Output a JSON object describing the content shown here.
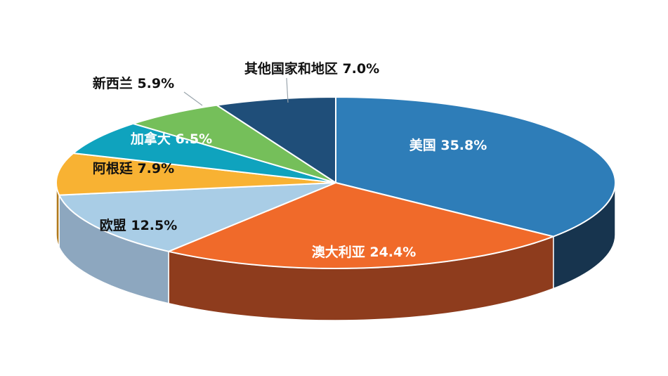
{
  "chart_data": {
    "type": "pie",
    "title": "",
    "slices": [
      {
        "name": "美国",
        "value": 35.8,
        "label": "美国 35.8%",
        "color": "#2E7DB8",
        "side_color": "#17344E",
        "text_color": "#ffffff"
      },
      {
        "name": "澳大利亚",
        "value": 24.4,
        "label": "澳大利亚 24.4%",
        "color": "#F06A2A",
        "side_color": "#8E3C1D",
        "text_color": "#ffffff"
      },
      {
        "name": "欧盟",
        "value": 12.5,
        "label": "欧盟 12.5%",
        "color": "#A9CDE6",
        "side_color": "#8DA7BF",
        "text_color": "#111111"
      },
      {
        "name": "阿根廷",
        "value": 7.9,
        "label": "阿根廷 7.9%",
        "color": "#F8B233",
        "side_color": "#B07A1E",
        "text_color": "#111111"
      },
      {
        "name": "加拿大",
        "value": 6.5,
        "label": "加拿大 6.5%",
        "color": "#0FA3BE",
        "side_color": "#0A6E80",
        "text_color": "#ffffff"
      },
      {
        "name": "新西兰",
        "value": 5.9,
        "label": "新西兰 5.9%",
        "color": "#75BF5A",
        "side_color": "#4E8A3B",
        "text_color": "#111111"
      },
      {
        "name": "其他国家和地区",
        "value": 7.0,
        "label": "其他国家和地区 7.0%",
        "color": "#1F4E79",
        "side_color": "#112C45",
        "text_color": "#111111"
      }
    ]
  }
}
